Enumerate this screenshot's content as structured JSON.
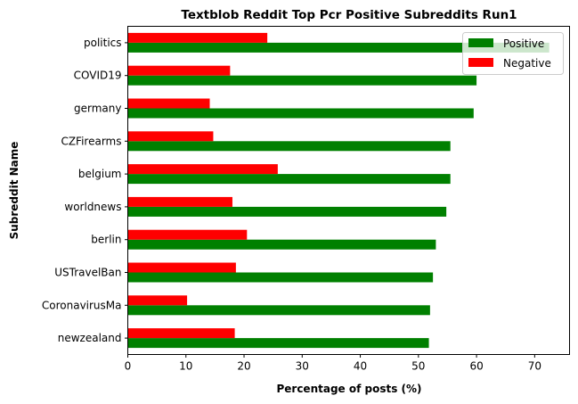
{
  "chart_data": {
    "type": "bar",
    "orientation": "horizontal",
    "title": "Textblob Reddit Top Pcr Positive Subreddits Run1",
    "xlabel": "Percentage of posts (%)",
    "ylabel": "Subreddit Name",
    "xlim": [
      0,
      76
    ],
    "xticks": [
      0,
      10,
      20,
      30,
      40,
      50,
      60,
      70
    ],
    "categories": [
      "politics",
      "COVID19",
      "germany",
      "CZFirearms",
      "belgium",
      "worldnews",
      "berlin",
      "USTravelBan",
      "CoronavirusMa",
      "newzealand"
    ],
    "series": [
      {
        "name": "Positive",
        "color": "#008000",
        "values": [
          72.5,
          60.0,
          59.5,
          55.5,
          55.5,
          54.8,
          53.0,
          52.5,
          52.0,
          51.8
        ]
      },
      {
        "name": "Negative",
        "color": "#ff0000",
        "values": [
          24.0,
          17.6,
          14.1,
          14.7,
          25.8,
          18.0,
          20.5,
          18.6,
          10.2,
          18.4
        ]
      }
    ],
    "legend_position": "top-right",
    "grid": false
  }
}
